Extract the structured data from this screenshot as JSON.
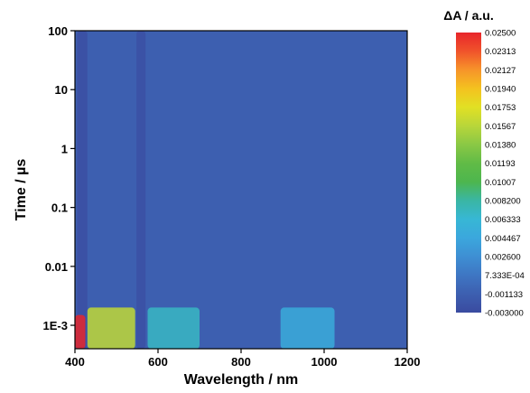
{
  "chart_data": {
    "type": "heatmap",
    "xlabel": "Wavelength / nm",
    "ylabel": "Time / µs",
    "x_ticks": [
      "400",
      "600",
      "800",
      "1000",
      "1200"
    ],
    "x_tick_values": [
      400,
      600,
      800,
      1000,
      1200
    ],
    "xlim": [
      400,
      1200
    ],
    "y_scale": "log",
    "y_ticks": [
      "1E-3",
      "0.01",
      "0.1",
      "1",
      "10",
      "100"
    ],
    "y_tick_values": [
      0.001,
      0.01,
      0.1,
      1,
      10,
      100
    ],
    "ylim": [
      0.0004,
      100
    ],
    "colorbar": {
      "title": "ΔA / a.u.",
      "range": [
        -0.003,
        0.025
      ],
      "labels": [
        "0.02500",
        "0.02313",
        "0.02127",
        "0.01940",
        "0.01753",
        "0.01567",
        "0.01380",
        "0.01193",
        "0.01007",
        "0.008200",
        "0.006333",
        "0.004467",
        "0.002600",
        "7.333E-04",
        "-0.001133",
        "-0.003000"
      ],
      "colors": [
        "#e8262b",
        "#f0532b",
        "#f7942a",
        "#f4c21f",
        "#e1e024",
        "#b8d63a",
        "#8ac845",
        "#61bb46",
        "#4db64e",
        "#3ab6a4",
        "#37b7d5",
        "#3ba7dd",
        "#3e8fd3",
        "#3e76c3",
        "#3d5fb0",
        "#3a4ba0"
      ]
    },
    "background_value": -0.0011,
    "features": [
      {
        "label": "ground-state bleach band",
        "wavelength": [
          405,
          430
        ],
        "time": [
          0.0004,
          100
        ],
        "value": -0.0026
      },
      {
        "label": "positive feature",
        "wavelength": [
          400,
          425
        ],
        "time": [
          0.0004,
          0.0015
        ],
        "value": 0.025
      },
      {
        "label": "positive band",
        "wavelength": [
          430,
          545
        ],
        "time": [
          0.0004,
          0.002
        ],
        "value": 0.016
      },
      {
        "label": "positive band",
        "wavelength": [
          575,
          700
        ],
        "time": [
          0.0004,
          0.002
        ],
        "value": 0.007
      },
      {
        "label": "positive band",
        "wavelength": [
          895,
          1025
        ],
        "time": [
          0.0004,
          0.002
        ],
        "value": 0.005
      },
      {
        "label": "negative band",
        "wavelength": [
          548,
          570
        ],
        "time": [
          0.0004,
          100
        ],
        "value": -0.0025
      }
    ],
    "grid": false,
    "legend": "colorbar-right"
  }
}
